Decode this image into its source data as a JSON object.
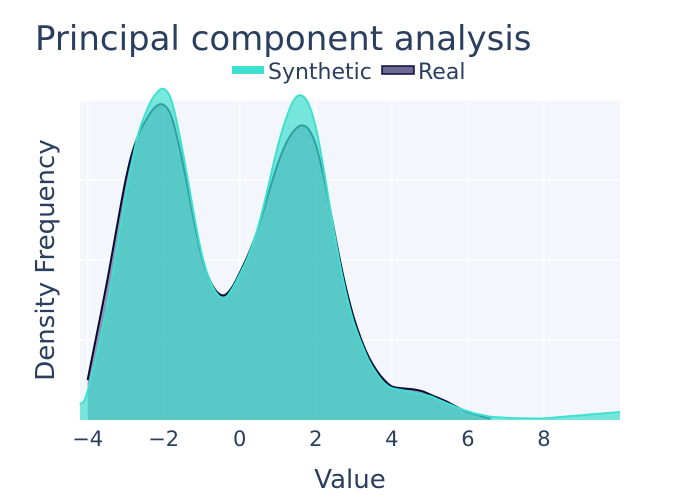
{
  "chart_data": {
    "type": "area",
    "title": "Principal component analysis",
    "xlabel": "Value",
    "ylabel": "Density Frequency",
    "xlim": [
      -4.2,
      10
    ],
    "ylim": [
      0,
      0.2
    ],
    "x_ticks": [
      -4,
      -2,
      0,
      2,
      4,
      6,
      8
    ],
    "x_tick_labels": [
      "−4",
      "−2",
      "0",
      "2",
      "4",
      "6",
      "8"
    ],
    "y_gridlines": [
      0.05,
      0.1,
      0.15,
      0.2
    ],
    "y_tick_labels_shown": false,
    "grid": true,
    "legend_position": "top-center",
    "series": [
      {
        "name": "Synthetic",
        "color": "#40E0D0",
        "fill_opacity": 0.7,
        "x": [
          -4.2,
          -4.0,
          -3.5,
          -3.0,
          -2.7,
          -2.4,
          -2.2,
          -2.0,
          -1.8,
          -1.6,
          -1.4,
          -1.2,
          -1.0,
          -0.8,
          -0.6,
          -0.4,
          -0.2,
          0.0,
          0.2,
          0.4,
          0.6,
          0.8,
          1.0,
          1.2,
          1.4,
          1.6,
          1.8,
          2.0,
          2.2,
          2.4,
          2.6,
          2.8,
          3.0,
          3.2,
          3.4,
          3.6,
          3.8,
          4.0,
          4.2,
          4.4,
          4.6,
          4.8,
          5.0,
          5.2,
          5.4,
          5.6,
          5.8,
          6.0,
          6.2,
          6.4,
          6.6,
          7.0,
          7.5,
          8.0,
          8.5,
          9.0,
          9.5,
          10.0
        ],
        "values": [
          0.01,
          0.018,
          0.07,
          0.14,
          0.176,
          0.196,
          0.204,
          0.207,
          0.2,
          0.18,
          0.155,
          0.128,
          0.104,
          0.088,
          0.079,
          0.076,
          0.082,
          0.091,
          0.101,
          0.114,
          0.131,
          0.151,
          0.171,
          0.187,
          0.199,
          0.203,
          0.198,
          0.183,
          0.158,
          0.129,
          0.102,
          0.079,
          0.061,
          0.048,
          0.037,
          0.029,
          0.023,
          0.02,
          0.019,
          0.018,
          0.017,
          0.016,
          0.015,
          0.013,
          0.011,
          0.009,
          0.007,
          0.0055,
          0.004,
          0.003,
          0.002,
          0.0014,
          0.001,
          0.001,
          0.002,
          0.003,
          0.004,
          0.005
        ]
      },
      {
        "name": "Real",
        "color": "#0A0A3A",
        "fill_color": "#6C6994",
        "fill_opacity": 0.7,
        "x": [
          -4.0,
          -3.5,
          -3.0,
          -2.7,
          -2.4,
          -2.2,
          -2.0,
          -1.8,
          -1.6,
          -1.4,
          -1.2,
          -1.0,
          -0.8,
          -0.6,
          -0.4,
          -0.2,
          0.0,
          0.2,
          0.4,
          0.6,
          0.8,
          1.0,
          1.2,
          1.4,
          1.6,
          1.8,
          2.0,
          2.2,
          2.4,
          2.6,
          2.8,
          3.0,
          3.2,
          3.4,
          3.6,
          3.8,
          4.0,
          4.2,
          4.4,
          4.6,
          4.8,
          5.0,
          5.2,
          5.4,
          5.6,
          5.8,
          6.0,
          6.2,
          6.4,
          6.6
        ],
        "values": [
          0.025,
          0.085,
          0.15,
          0.176,
          0.19,
          0.196,
          0.197,
          0.19,
          0.172,
          0.149,
          0.124,
          0.102,
          0.088,
          0.08,
          0.078,
          0.083,
          0.092,
          0.102,
          0.114,
          0.129,
          0.145,
          0.16,
          0.172,
          0.18,
          0.184,
          0.182,
          0.172,
          0.153,
          0.129,
          0.104,
          0.082,
          0.064,
          0.05,
          0.039,
          0.031,
          0.025,
          0.021,
          0.02,
          0.0195,
          0.019,
          0.018,
          0.016,
          0.014,
          0.012,
          0.0095,
          0.007,
          0.005,
          0.0035,
          0.002,
          0.001
        ]
      }
    ]
  }
}
